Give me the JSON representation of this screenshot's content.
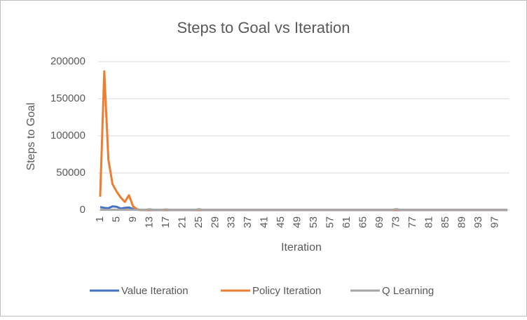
{
  "chart_data": {
    "type": "line",
    "title": "Steps to Goal vs Iteration",
    "x_label": "Iteration",
    "y_label": "Steps to Goal",
    "categories": [
      1,
      null,
      null,
      null,
      5,
      null,
      null,
      null,
      9,
      null,
      null,
      null,
      13,
      null,
      null,
      null,
      17,
      null,
      null,
      null,
      21,
      null,
      null,
      null,
      25,
      null,
      null,
      null,
      29,
      null,
      null,
      null,
      33,
      null,
      null,
      null,
      37,
      null,
      null,
      null,
      41,
      null,
      null,
      null,
      45,
      null,
      null,
      null,
      49,
      null,
      null,
      null,
      53,
      null,
      null,
      null,
      57,
      null,
      null,
      null,
      61,
      null,
      null,
      null,
      65,
      null,
      null,
      null,
      69,
      null,
      null,
      null,
      73,
      null,
      null,
      null,
      77,
      null,
      null,
      null,
      81,
      null,
      null,
      null,
      85,
      null,
      null,
      null,
      89,
      null,
      null,
      null,
      93,
      null,
      null,
      null,
      97,
      null,
      null,
      null
    ],
    "series": [
      {
        "name": "Value Iteration",
        "color": "#4472c4",
        "values": [
          4000,
          3000,
          2500,
          5000,
          4500,
          2000,
          3000,
          3500,
          1500,
          500,
          0,
          0,
          0,
          0,
          0,
          0,
          0,
          0,
          0,
          0,
          0,
          0,
          0,
          0,
          0,
          0,
          0,
          0,
          0,
          0,
          0,
          0,
          0,
          0,
          0,
          0,
          0,
          0,
          0,
          0,
          0,
          0,
          0,
          0,
          0,
          0,
          0,
          0,
          0,
          0,
          0,
          0,
          0,
          0,
          0,
          0,
          0,
          0,
          0,
          0,
          0,
          0,
          0,
          0,
          0,
          0,
          0,
          0,
          0,
          0,
          0,
          0,
          0,
          0,
          0,
          0,
          0,
          0,
          0,
          0,
          0,
          0,
          0,
          0,
          0,
          0,
          0,
          0,
          0,
          0,
          0,
          0,
          0,
          0,
          0,
          0,
          0,
          0,
          0,
          0
        ]
      },
      {
        "name": "Policy Iteration",
        "color": "#ed7d31",
        "values": [
          18000,
          187000,
          68000,
          35000,
          25000,
          17000,
          11000,
          20000,
          5000,
          1000,
          200,
          200,
          200,
          200,
          200,
          200,
          200,
          200,
          200,
          200,
          200,
          200,
          200,
          200,
          200,
          200,
          200,
          200,
          200,
          200,
          200,
          200,
          200,
          200,
          200,
          200,
          200,
          200,
          200,
          200,
          200,
          200,
          200,
          200,
          200,
          200,
          200,
          200,
          200,
          200,
          200,
          200,
          200,
          200,
          200,
          200,
          200,
          200,
          200,
          200,
          200,
          200,
          200,
          200,
          200,
          200,
          200,
          200,
          200,
          200,
          200,
          200,
          200,
          200,
          200,
          200,
          200,
          200,
          200,
          200,
          200,
          200,
          200,
          200,
          200,
          200,
          200,
          200,
          200,
          200,
          200,
          200,
          200,
          200,
          200,
          200,
          200,
          200,
          200,
          200
        ]
      },
      {
        "name": "Q Learning",
        "color": "#a5a5a5",
        "values": [
          300,
          300,
          300,
          300,
          300,
          300,
          300,
          300,
          300,
          300,
          300,
          300,
          1200,
          300,
          300,
          300,
          1000,
          300,
          300,
          300,
          300,
          300,
          300,
          300,
          1200,
          300,
          300,
          300,
          300,
          300,
          300,
          300,
          300,
          300,
          300,
          300,
          300,
          300,
          300,
          300,
          300,
          300,
          300,
          300,
          300,
          300,
          300,
          300,
          300,
          300,
          300,
          300,
          300,
          300,
          300,
          300,
          300,
          300,
          300,
          300,
          300,
          300,
          300,
          300,
          300,
          300,
          300,
          300,
          300,
          300,
          300,
          300,
          1300,
          300,
          300,
          300,
          300,
          300,
          300,
          300,
          300,
          300,
          300,
          300,
          300,
          300,
          300,
          300,
          300,
          300,
          300,
          300,
          300,
          300,
          300,
          300,
          300,
          300,
          300,
          300
        ]
      }
    ],
    "ylim": [
      0,
      200000
    ],
    "yticks": [
      0,
      50000,
      100000,
      150000,
      200000
    ],
    "grid": true
  }
}
